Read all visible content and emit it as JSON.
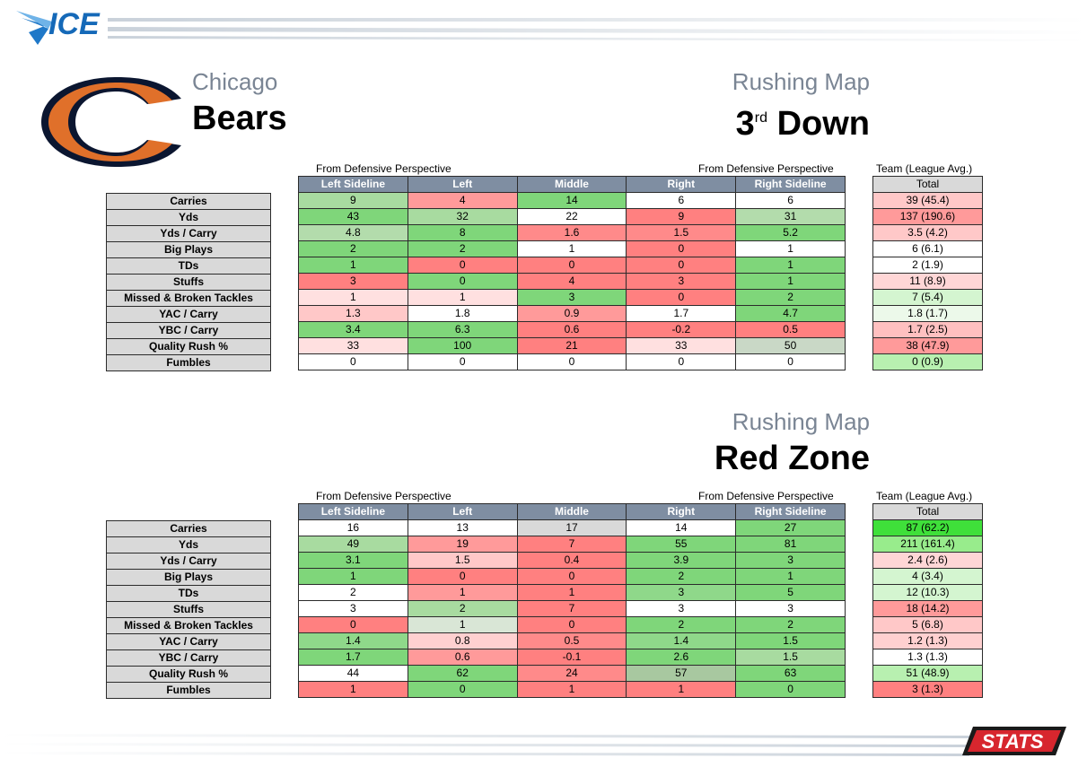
{
  "header": {
    "brand_logo": "ICE",
    "footer_logo": "STATS"
  },
  "team": {
    "city": "Chicago",
    "name": "Bears",
    "logo_letter": "C"
  },
  "columns": [
    "Left Sideline",
    "Left",
    "Middle",
    "Right",
    "Right Sideline"
  ],
  "row_labels": [
    "Carries",
    "Yds",
    "Yds / Carry",
    "Big Plays",
    "TDs",
    "Stuffs",
    "Missed & Broken Tackles",
    "YAC / Carry",
    "YBC / Carry",
    "Quality Rush %",
    "Fumbles"
  ],
  "sections": [
    {
      "title": "Rushing Map",
      "subtitle": "3",
      "subtitle_sup": "rd",
      "subtitle_rest": " Down",
      "perspective_left": "From Defensive Perspective",
      "perspective_right": "From Defensive Perspective",
      "team_label": "Team (League Avg.)",
      "total_header": "Total",
      "rows": [
        [
          "9",
          "4",
          "14",
          "6",
          "6"
        ],
        [
          "43",
          "32",
          "22",
          "9",
          "31"
        ],
        [
          "4.8",
          "8",
          "1.6",
          "1.5",
          "5.2"
        ],
        [
          "2",
          "2",
          "1",
          "0",
          "1"
        ],
        [
          "1",
          "0",
          "0",
          "0",
          "1"
        ],
        [
          "3",
          "0",
          "4",
          "3",
          "1"
        ],
        [
          "1",
          "1",
          "3",
          "0",
          "2"
        ],
        [
          "1.3",
          "1.8",
          "0.9",
          "1.7",
          "4.7"
        ],
        [
          "3.4",
          "6.3",
          "0.6",
          "-0.2",
          "0.5"
        ],
        [
          "33",
          "100",
          "21",
          "33",
          "50"
        ],
        [
          "0",
          "0",
          "0",
          "0",
          "0"
        ]
      ],
      "colors": [
        [
          "#a8dba0",
          "#ff9a9a",
          "#7fd67a",
          "#ffffff",
          "#ffffff"
        ],
        [
          "#7fd67a",
          "#a8dba0",
          "#ffffff",
          "#ff8080",
          "#b3dcac"
        ],
        [
          "#b3dcac",
          "#7fd67a",
          "#ff8a8a",
          "#ff8a8a",
          "#7fd67a"
        ],
        [
          "#7fd67a",
          "#7fd67a",
          "#ffffff",
          "#ff8080",
          "#ffffff"
        ],
        [
          "#7fd67a",
          "#ff8080",
          "#ff8080",
          "#ff8080",
          "#7fd67a"
        ],
        [
          "#ff8080",
          "#7fd67a",
          "#ff8080",
          "#ff8080",
          "#7fd67a"
        ],
        [
          "#ffe0e0",
          "#ffe0e0",
          "#7fd67a",
          "#ff8080",
          "#7fd67a"
        ],
        [
          "#ffc8c8",
          "#ffffff",
          "#ff9a9a",
          "#ffffff",
          "#7fd67a"
        ],
        [
          "#7fd67a",
          "#7fd67a",
          "#ff8080",
          "#ff8080",
          "#ff8080"
        ],
        [
          "#ffe0e0",
          "#7fd67a",
          "#ff8080",
          "#ffe0e0",
          "#c9d8c6"
        ],
        [
          "#ffffff",
          "#ffffff",
          "#ffffff",
          "#ffffff",
          "#ffffff"
        ]
      ],
      "totals": [
        "39 (45.4)",
        "137 (190.6)",
        "3.5 (4.2)",
        "6 (6.1)",
        "2 (1.9)",
        "11 (8.9)",
        "7 (5.4)",
        "1.8 (1.7)",
        "1.7 (2.5)",
        "38 (47.9)",
        "0 (0.9)"
      ],
      "total_colors": [
        "#ffc8c8",
        "#ff9a9a",
        "#ffc8c8",
        "#ffffff",
        "#ffffff",
        "#ffd6d6",
        "#d4f5d0",
        "#ecf9ea",
        "#ffc0c0",
        "#ff9a9a",
        "#b8f0b0"
      ]
    },
    {
      "title": "Rushing Map",
      "subtitle": "Red Zone",
      "subtitle_sup": "",
      "subtitle_rest": "",
      "perspective_left": "From Defensive Perspective",
      "perspective_right": "From Defensive Perspective",
      "team_label": "Team (League Avg.)",
      "total_header": "Total",
      "rows": [
        [
          "16",
          "13",
          "17",
          "14",
          "27"
        ],
        [
          "49",
          "19",
          "7",
          "55",
          "81"
        ],
        [
          "3.1",
          "1.5",
          "0.4",
          "3.9",
          "3"
        ],
        [
          "1",
          "0",
          "0",
          "2",
          "1"
        ],
        [
          "2",
          "1",
          "1",
          "3",
          "5"
        ],
        [
          "3",
          "2",
          "7",
          "3",
          "3"
        ],
        [
          "0",
          "1",
          "0",
          "2",
          "2"
        ],
        [
          "1.4",
          "0.8",
          "0.5",
          "1.4",
          "1.5"
        ],
        [
          "1.7",
          "0.6",
          "-0.1",
          "2.6",
          "1.5"
        ],
        [
          "44",
          "62",
          "24",
          "57",
          "63"
        ],
        [
          "1",
          "0",
          "1",
          "1",
          "0"
        ]
      ],
      "colors": [
        [
          "#ffffff",
          "#ffffff",
          "#d9d9d9",
          "#ffffff",
          "#7fd67a"
        ],
        [
          "#a8dba0",
          "#ff9a9a",
          "#ff8080",
          "#7fd67a",
          "#7fd67a"
        ],
        [
          "#7fd67a",
          "#ffc8c8",
          "#ff8080",
          "#7fd67a",
          "#7fd67a"
        ],
        [
          "#7fd67a",
          "#ff8080",
          "#ff8080",
          "#7fd67a",
          "#7fd67a"
        ],
        [
          "#ffffff",
          "#ff9a9a",
          "#ff8080",
          "#8fd88a",
          "#7fd67a"
        ],
        [
          "#ffffff",
          "#a8dba0",
          "#ff8080",
          "#ffffff",
          "#ffffff"
        ],
        [
          "#ff8080",
          "#d9e6d6",
          "#ff8080",
          "#7fd67a",
          "#7fd67a"
        ],
        [
          "#8fd88a",
          "#ffd0d0",
          "#ff8a8a",
          "#8fd88a",
          "#7fd67a"
        ],
        [
          "#7fd67a",
          "#ff9a9a",
          "#ff8080",
          "#7fd67a",
          "#a8dba0"
        ],
        [
          "#ffffff",
          "#7fd67a",
          "#ff8a8a",
          "#a8c8a0",
          "#7fd67a"
        ],
        [
          "#ff8080",
          "#7fd67a",
          "#ff8080",
          "#ff8080",
          "#7fd67a"
        ]
      ],
      "totals": [
        "87 (62.2)",
        "211 (161.4)",
        "2.4 (2.6)",
        "4 (3.4)",
        "12 (10.3)",
        "18 (14.2)",
        "5 (6.8)",
        "1.2 (1.3)",
        "1.3 (1.3)",
        "51 (48.9)",
        "3 (1.3)"
      ],
      "total_colors": [
        "#3fe03a",
        "#98ec8c",
        "#ffd6d6",
        "#d4f5d0",
        "#d4f5d0",
        "#ff9a9a",
        "#ffc8c8",
        "#ffd0d0",
        "#ffffff",
        "#b8f0b0",
        "#ff8080"
      ]
    }
  ]
}
